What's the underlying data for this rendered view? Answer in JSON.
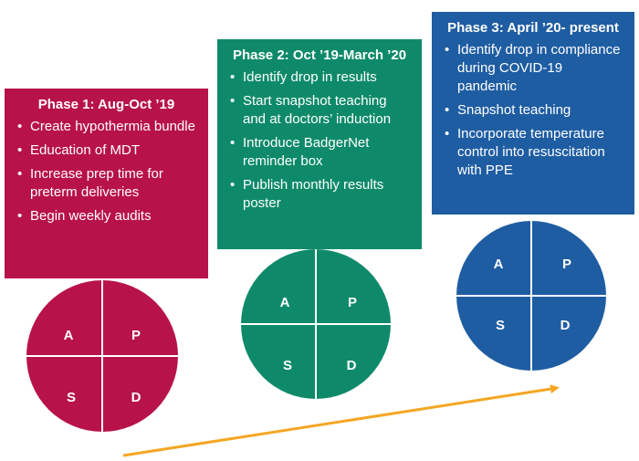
{
  "colors": {
    "phase1": "#b8124a",
    "phase2": "#0e8a6a",
    "phase3": "#1f5da2",
    "arrow": "#f5a623",
    "divider": "#ffffff"
  },
  "phases": [
    {
      "title": "Phase 1: Aug-Oct ’19",
      "items": [
        "Create hypothermia bundle",
        "Education of MDT",
        "Increase prep time for preterm deliveries",
        "Begin weekly audits"
      ],
      "cycle": {
        "a": "A",
        "p": "P",
        "s": "S",
        "d": "D"
      }
    },
    {
      "title": "Phase 2: Oct ’19-March ’20",
      "items": [
        "Identify drop in results",
        "Start snapshot teaching and at doctors’ induction",
        "Introduce BadgerNet reminder box",
        "Publish monthly results poster"
      ],
      "cycle": {
        "a": "A",
        "p": "P",
        "s": "S",
        "d": "D"
      }
    },
    {
      "title": "Phase 3: April ’20- present",
      "items": [
        "Identify drop in compliance during COVID-19 pandemic",
        "Snapshot teaching",
        "Incorporate temperature control into resuscitation with PPE"
      ],
      "cycle": {
        "a": "A",
        "p": "P",
        "s": "S",
        "d": "D"
      }
    }
  ]
}
